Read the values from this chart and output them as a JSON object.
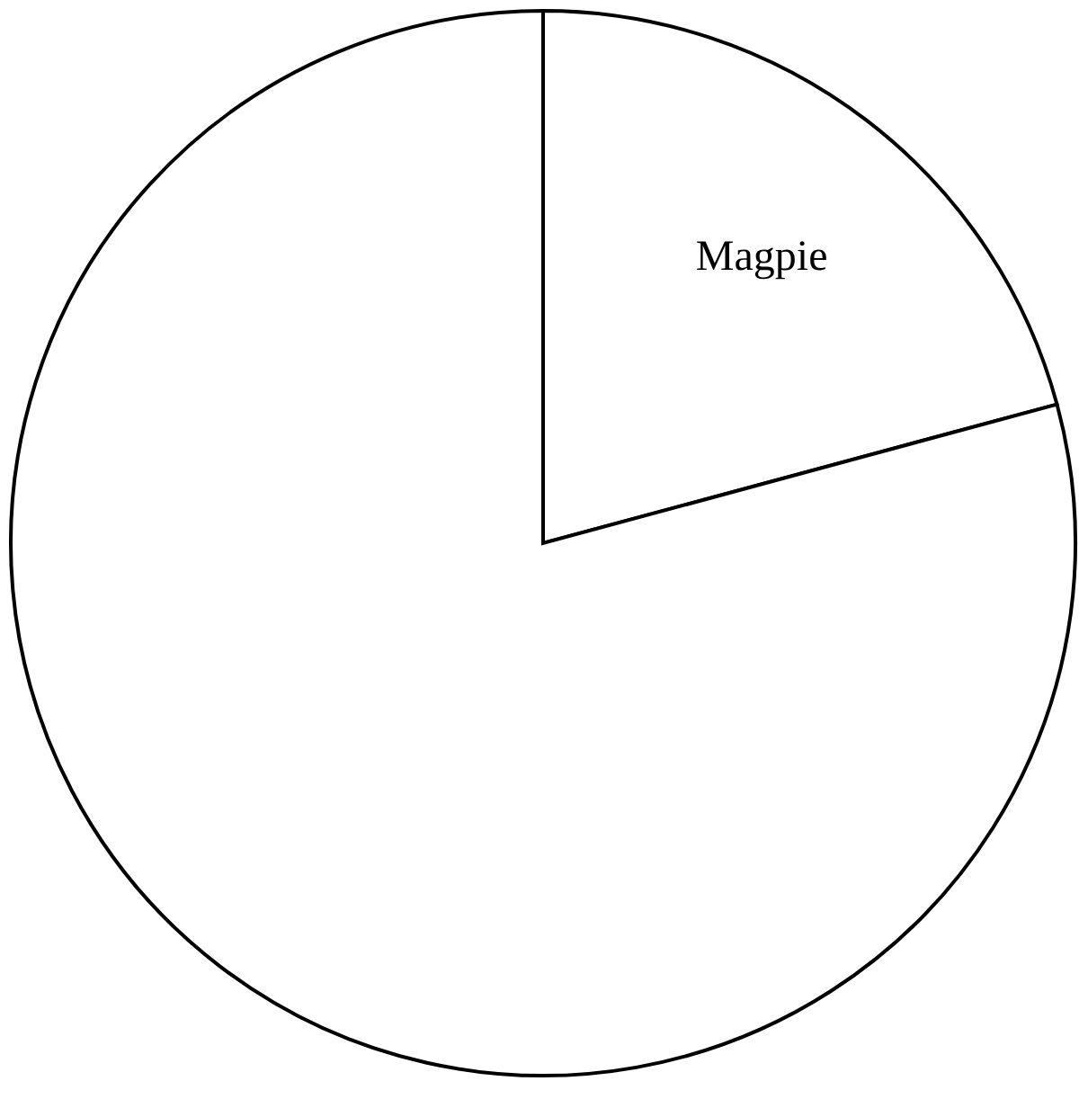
{
  "chart_data": {
    "type": "pie",
    "categories": [
      "Magpie",
      null
    ],
    "values": [
      20.8,
      79.2
    ],
    "colors": [
      "#ffffff",
      "#ffffff"
    ],
    "legend": false
  }
}
